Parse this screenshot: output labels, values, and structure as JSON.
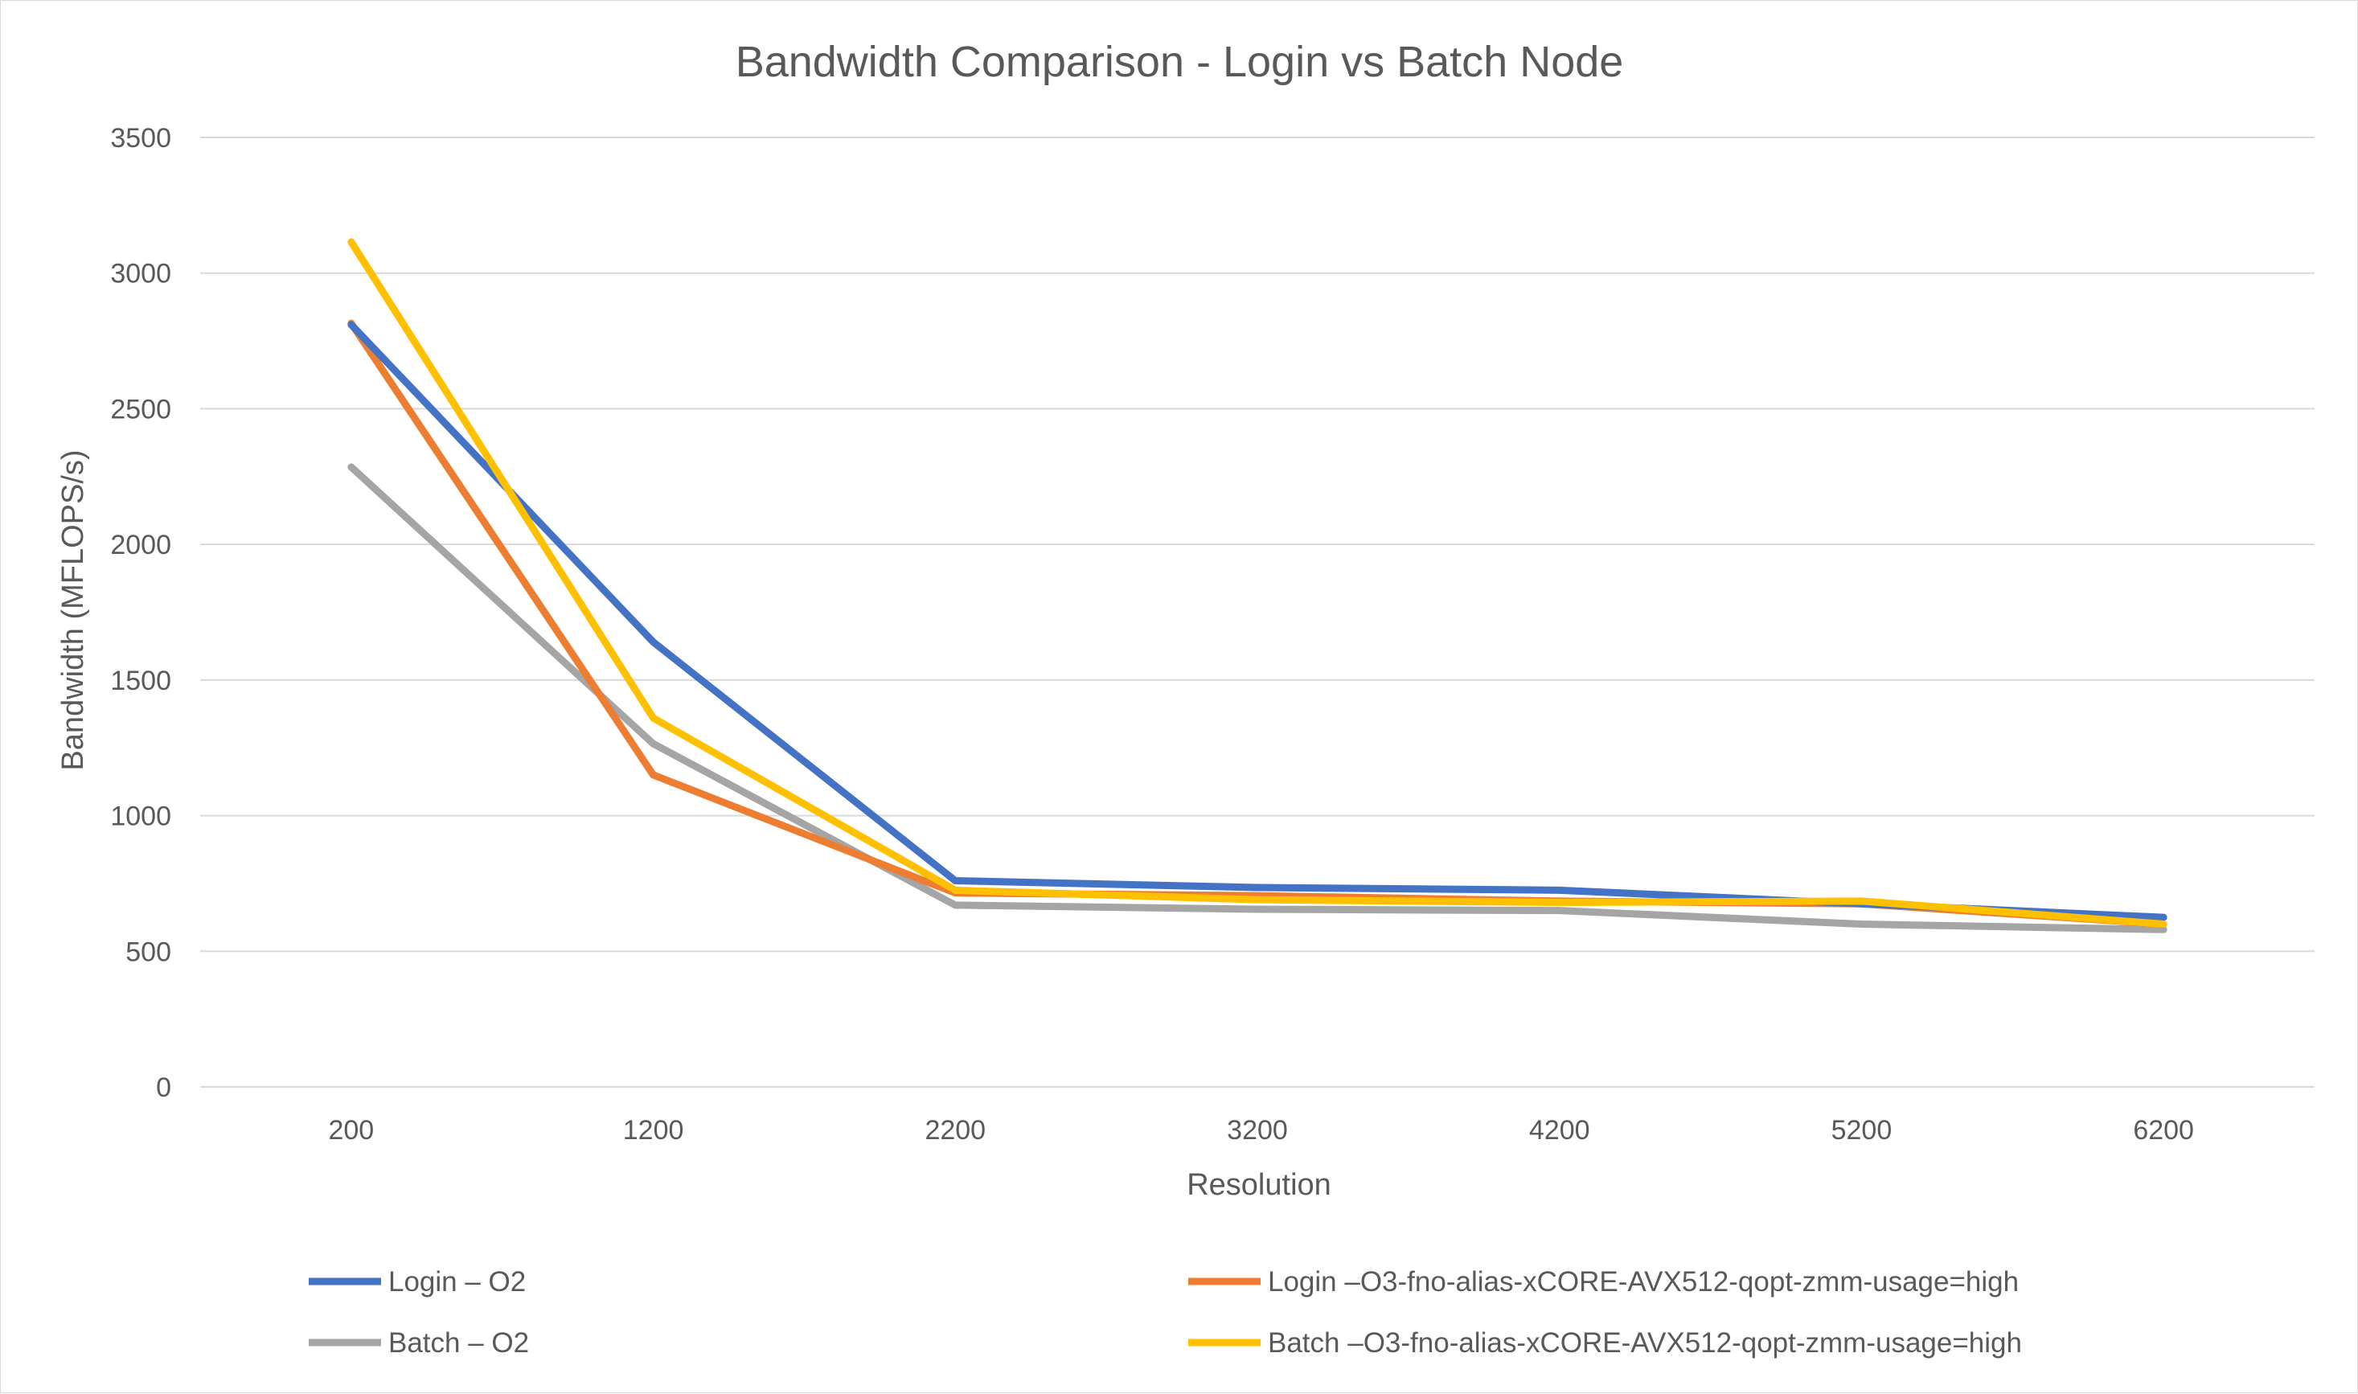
{
  "chart_data": {
    "type": "line",
    "title": "Bandwidth Comparison - Login vs Batch Node",
    "xlabel": "Resolution",
    "ylabel": "Bandwidth (MFLOPS/s)",
    "categories": [
      "200",
      "1200",
      "2200",
      "3200",
      "4200",
      "5200",
      "6200"
    ],
    "ylim": [
      0,
      3500
    ],
    "yticks": [
      0,
      500,
      1000,
      1500,
      2000,
      2500,
      3000,
      3500
    ],
    "grid": true,
    "legend_position": "bottom",
    "series": [
      {
        "name": "Login – O2",
        "color": "#4472c4",
        "values": [
          2810,
          1640,
          760,
          735,
          725,
          675,
          625
        ]
      },
      {
        "name": "Login –O3-fno-alias-xCORE-AVX512-qopt-zmm-usage=high",
        "color": "#ed7d31",
        "values": [
          2815,
          1150,
          715,
          705,
          685,
          675,
          600
        ]
      },
      {
        "name": "Batch – O2",
        "color": "#a5a5a5",
        "values": [
          2285,
          1265,
          670,
          655,
          650,
          600,
          580
        ]
      },
      {
        "name": "Batch –O3-fno-alias-xCORE-AVX512-qopt-zmm-usage=high",
        "color": "#ffc000",
        "values": [
          3115,
          1360,
          725,
          690,
          680,
          685,
          600
        ]
      }
    ]
  }
}
